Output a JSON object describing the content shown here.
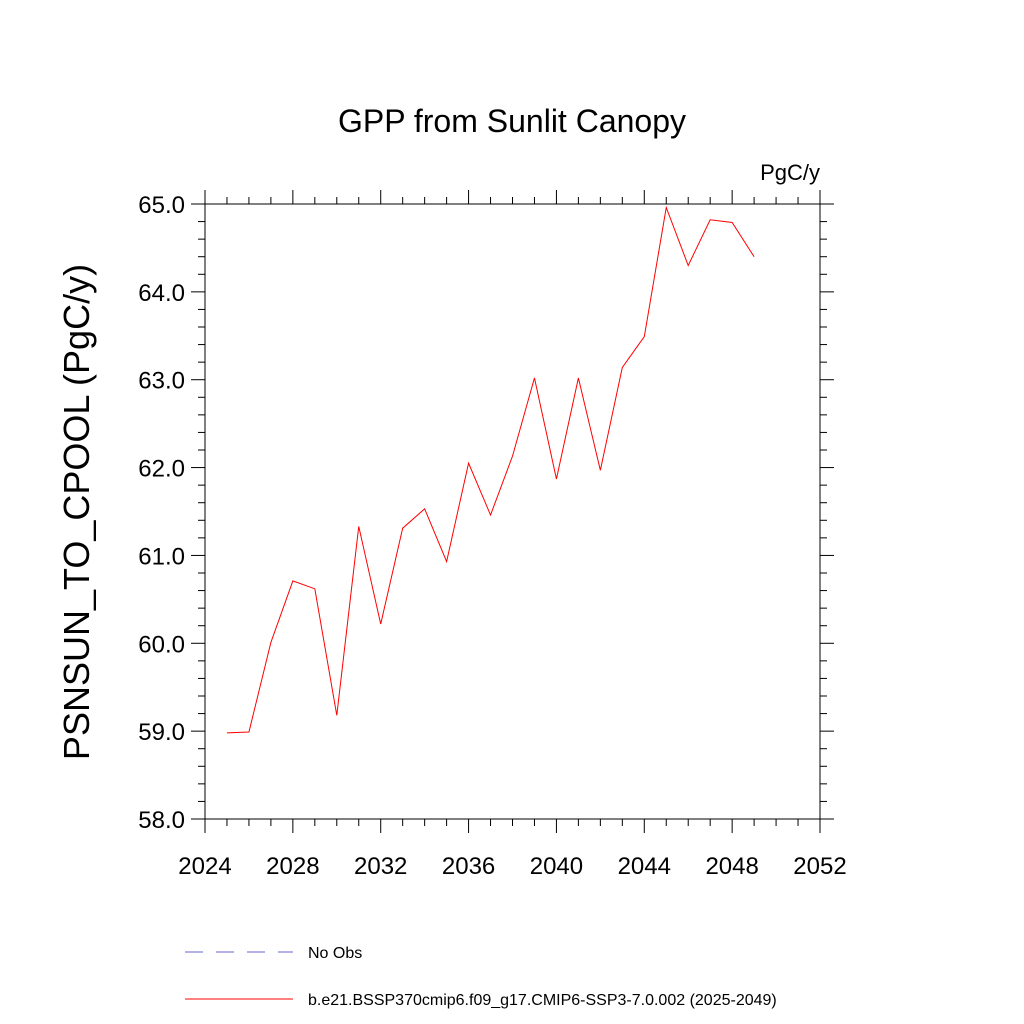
{
  "chart_data": {
    "type": "line",
    "title": "GPP from Sunlit Canopy",
    "units_label": "PgC/y",
    "ylabel": "PSNSUN_TO_CPOOL  (PgC/y)",
    "xlabel": "",
    "xlim": [
      2024,
      2052
    ],
    "ylim": [
      58.0,
      65.0
    ],
    "x_ticks": [
      2024,
      2028,
      2032,
      2036,
      2040,
      2044,
      2048,
      2052
    ],
    "x_tick_labels": [
      "2024",
      "2028",
      "2032",
      "2036",
      "2040",
      "2044",
      "2048",
      "2052"
    ],
    "y_ticks": [
      58.0,
      59.0,
      60.0,
      61.0,
      62.0,
      63.0,
      64.0,
      65.0
    ],
    "y_tick_labels": [
      "58.0",
      "59.0",
      "60.0",
      "61.0",
      "62.0",
      "63.0",
      "64.0",
      "65.0"
    ],
    "grid": false,
    "legend_position": "bottom",
    "series": [
      {
        "name": "b.e21.BSSP370cmip6.f09_g17.CMIP6-SSP3-7.0.002 (2025-2049)",
        "color": "#ff0000",
        "style": "solid",
        "x": [
          2025,
          2026,
          2027,
          2028,
          2029,
          2030,
          2031,
          2032,
          2033,
          2034,
          2035,
          2036,
          2037,
          2038,
          2039,
          2040,
          2041,
          2042,
          2043,
          2044,
          2045,
          2046,
          2047,
          2048,
          2049
        ],
        "values": [
          58.98,
          58.99,
          60.01,
          60.71,
          60.62,
          59.18,
          61.33,
          60.22,
          61.31,
          61.53,
          60.93,
          62.05,
          61.46,
          62.13,
          63.02,
          61.87,
          63.02,
          61.97,
          63.14,
          63.49,
          64.96,
          64.3,
          64.82,
          64.79,
          64.4
        ]
      }
    ],
    "legend": [
      {
        "label": "No Obs",
        "color": "#6666cc",
        "style": "dashed"
      },
      {
        "label": "b.e21.BSSP370cmip6.f09_g17.CMIP6-SSP3-7.0.002 (2025-2049)",
        "color": "#ff0000",
        "style": "solid"
      }
    ]
  }
}
